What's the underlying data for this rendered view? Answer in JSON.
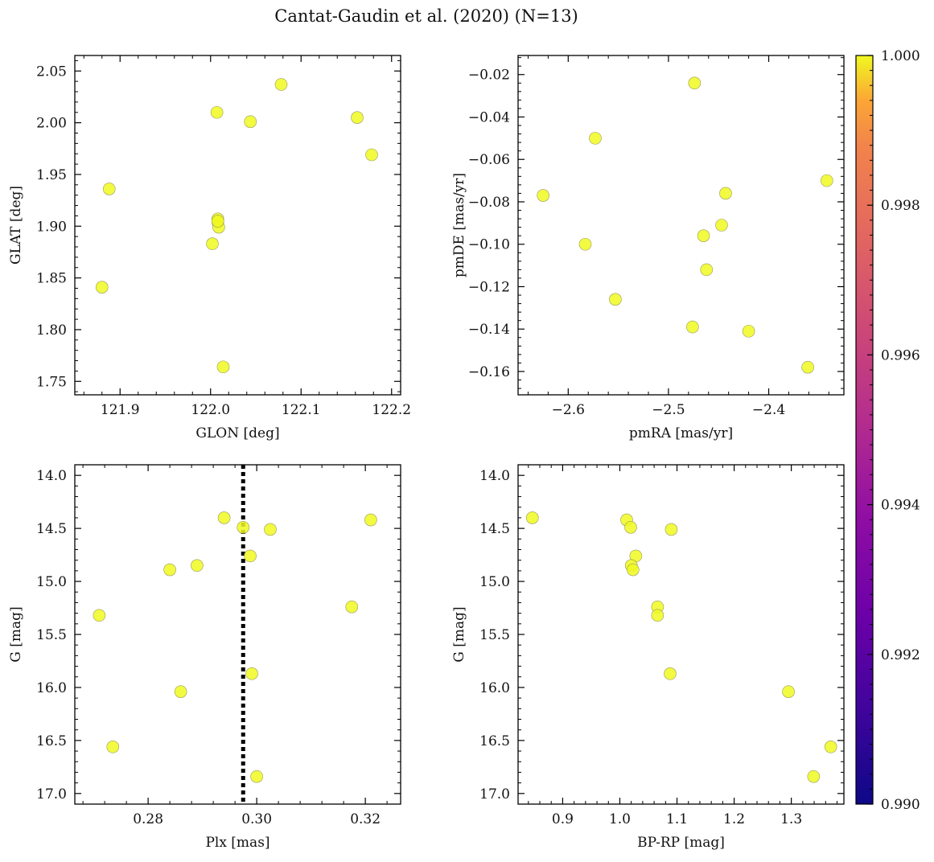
{
  "title": "Cantat-Gaudin et al. (2020) (N=13)",
  "colorbar": {
    "range": [
      0.99,
      1.0
    ],
    "ticks": [
      "0.990",
      "0.992",
      "0.994",
      "0.996",
      "0.998",
      "1.000"
    ],
    "colormap": "plasma",
    "point_color": "#f0f921"
  },
  "chart_data": [
    {
      "type": "scatter",
      "xlabel": "GLON [deg]",
      "ylabel": "GLAT [deg]",
      "xlim": [
        121.85,
        122.21
      ],
      "ylim": [
        1.737,
        2.065
      ],
      "xticks": [
        121.9,
        122.0,
        122.1,
        122.2
      ],
      "xtick_labels": [
        "121.9",
        "122.0",
        "122.1",
        "122.2"
      ],
      "yticks": [
        1.75,
        1.8,
        1.85,
        1.9,
        1.95,
        2.0,
        2.05
      ],
      "ytick_labels": [
        "1.75",
        "1.80",
        "1.85",
        "1.90",
        "1.95",
        "2.00",
        "2.05"
      ],
      "y_inverted": false,
      "points": [
        {
          "x": 122.078,
          "y": 2.037
        },
        {
          "x": 122.007,
          "y": 2.01
        },
        {
          "x": 122.044,
          "y": 2.001
        },
        {
          "x": 122.162,
          "y": 2.005
        },
        {
          "x": 122.178,
          "y": 1.969
        },
        {
          "x": 121.888,
          "y": 1.936
        },
        {
          "x": 122.008,
          "y": 1.907
        },
        {
          "x": 122.008,
          "y": 1.904
        },
        {
          "x": 122.009,
          "y": 1.899
        },
        {
          "x": 122.002,
          "y": 1.883
        },
        {
          "x": 121.88,
          "y": 1.841
        },
        {
          "x": 122.014,
          "y": 1.764
        },
        {
          "x": 122.008,
          "y": 1.905
        }
      ]
    },
    {
      "type": "scatter",
      "xlabel": "pmRA [mas/yr]",
      "ylabel": "pmDE [mas/yr]",
      "xlim": [
        -2.65,
        -2.325
      ],
      "ylim": [
        -0.171,
        -0.011
      ],
      "xticks": [
        -2.6,
        -2.5,
        -2.4
      ],
      "xtick_labels": [
        "−2.6",
        "−2.5",
        "−2.4"
      ],
      "yticks": [
        -0.16,
        -0.14,
        -0.12,
        -0.1,
        -0.08,
        -0.06,
        -0.04,
        -0.02
      ],
      "ytick_labels": [
        "−0.16",
        "−0.14",
        "−0.12",
        "−0.10",
        "−0.08",
        "−0.06",
        "−0.04",
        "−0.02"
      ],
      "y_inverted": false,
      "points": [
        {
          "x": -2.474,
          "y": -0.024
        },
        {
          "x": -2.573,
          "y": -0.05
        },
        {
          "x": -2.625,
          "y": -0.077
        },
        {
          "x": -2.342,
          "y": -0.07
        },
        {
          "x": -2.443,
          "y": -0.076
        },
        {
          "x": -2.583,
          "y": -0.1
        },
        {
          "x": -2.465,
          "y": -0.096
        },
        {
          "x": -2.447,
          "y": -0.091
        },
        {
          "x": -2.462,
          "y": -0.112
        },
        {
          "x": -2.553,
          "y": -0.126
        },
        {
          "x": -2.476,
          "y": -0.139
        },
        {
          "x": -2.42,
          "y": -0.141
        },
        {
          "x": -2.361,
          "y": -0.158
        }
      ]
    },
    {
      "type": "scatter",
      "xlabel": "Plx [mas]",
      "ylabel": "G [mag]",
      "xlim": [
        0.2665,
        0.3265
      ],
      "ylim": [
        17.1,
        13.9
      ],
      "xticks": [
        0.28,
        0.3,
        0.32
      ],
      "xtick_labels": [
        "0.28",
        "0.30",
        "0.32"
      ],
      "yticks": [
        14.0,
        14.5,
        15.0,
        15.5,
        16.0,
        16.5,
        17.0
      ],
      "ytick_labels": [
        "14.0",
        "14.5",
        "15.0",
        "15.5",
        "16.0",
        "16.5",
        "17.0"
      ],
      "y_inverted": true,
      "vline": {
        "x": 0.2975,
        "style": "dotted",
        "color": "#000000"
      },
      "points": [
        {
          "x": 0.294,
          "y": 14.4
        },
        {
          "x": 0.2975,
          "y": 14.49
        },
        {
          "x": 0.3025,
          "y": 14.51
        },
        {
          "x": 0.321,
          "y": 14.42
        },
        {
          "x": 0.2988,
          "y": 14.76
        },
        {
          "x": 0.284,
          "y": 14.89
        },
        {
          "x": 0.289,
          "y": 14.85
        },
        {
          "x": 0.271,
          "y": 15.32
        },
        {
          "x": 0.3175,
          "y": 15.24
        },
        {
          "x": 0.2991,
          "y": 15.87
        },
        {
          "x": 0.286,
          "y": 16.04
        },
        {
          "x": 0.2735,
          "y": 16.56
        },
        {
          "x": 0.3,
          "y": 16.84
        }
      ]
    },
    {
      "type": "scatter",
      "xlabel": "BP-RP [mag]",
      "ylabel": "G [mag]",
      "xlim": [
        0.822,
        1.392
      ],
      "ylim": [
        17.1,
        13.9
      ],
      "xticks": [
        0.9,
        1.0,
        1.1,
        1.2,
        1.3
      ],
      "xtick_labels": [
        "0.9",
        "1.0",
        "1.1",
        "1.2",
        "1.3"
      ],
      "yticks": [
        14.0,
        14.5,
        15.0,
        15.5,
        16.0,
        16.5,
        17.0
      ],
      "ytick_labels": [
        "14.0",
        "14.5",
        "15.0",
        "15.5",
        "16.0",
        "16.5",
        "17.0"
      ],
      "y_inverted": true,
      "points": [
        {
          "x": 0.847,
          "y": 14.4
        },
        {
          "x": 1.012,
          "y": 14.42
        },
        {
          "x": 1.019,
          "y": 14.49
        },
        {
          "x": 1.09,
          "y": 14.51
        },
        {
          "x": 1.028,
          "y": 14.76
        },
        {
          "x": 1.02,
          "y": 14.85
        },
        {
          "x": 1.023,
          "y": 14.89
        },
        {
          "x": 1.066,
          "y": 15.24
        },
        {
          "x": 1.066,
          "y": 15.32
        },
        {
          "x": 1.088,
          "y": 15.87
        },
        {
          "x": 1.295,
          "y": 16.04
        },
        {
          "x": 1.369,
          "y": 16.56
        },
        {
          "x": 1.339,
          "y": 16.84
        }
      ]
    }
  ]
}
